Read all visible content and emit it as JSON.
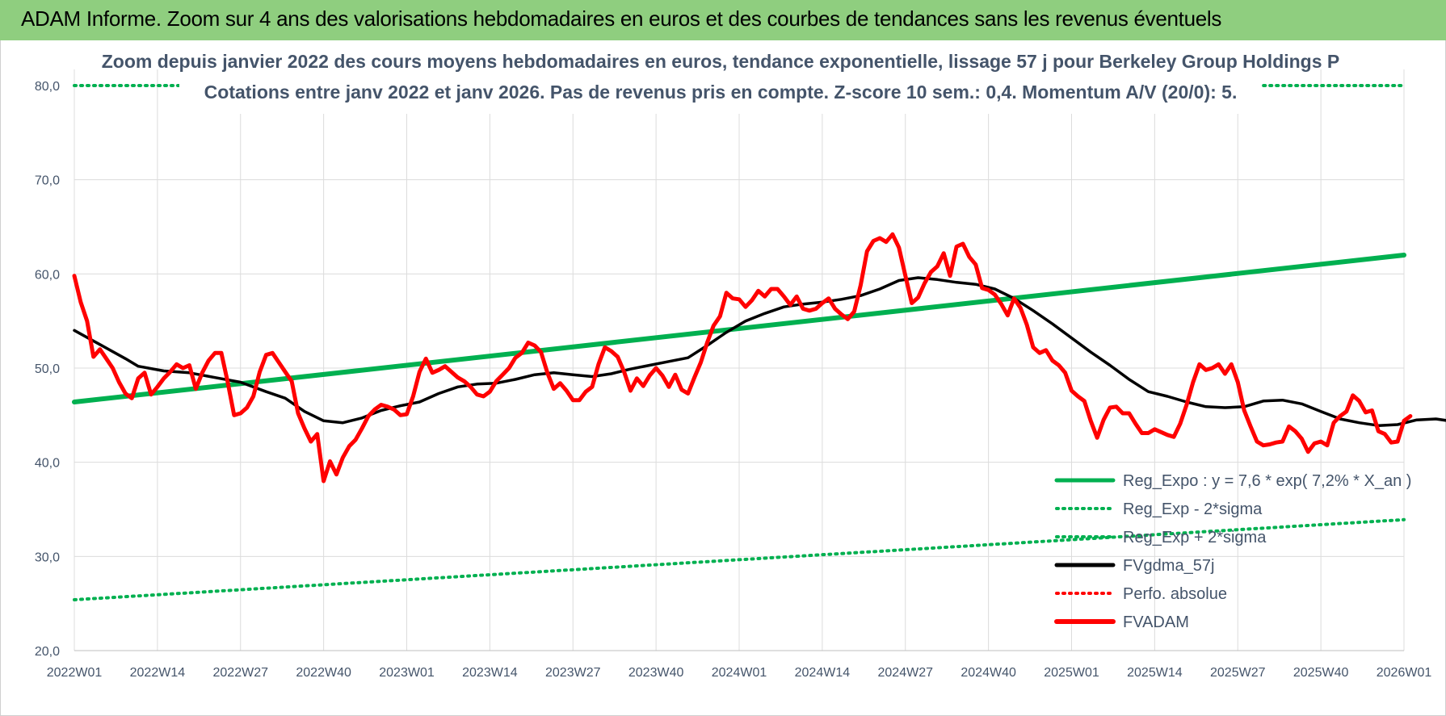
{
  "header": {
    "title": "ADAM Informe. Zoom sur 4 ans des valorisations hebdomadaires en euros et des courbes de tendances sans les revenus éventuels"
  },
  "chart_data": {
    "type": "line",
    "title": "Zoom depuis janvier 2022 des cours moyens hebdomadaires en euros, tendance exponentielle, lissage 57 j pour Berkeley Group Holdings P",
    "subtitle": "Cotations entre janv 2022 et janv 2026. Pas de revenus pris en compte. Z-score 10 sem.: 0,4. Momentum A/V (20/0): 5.",
    "xlabel": "",
    "ylabel": "",
    "ylim": [
      20,
      80
    ],
    "yticks": [
      "20,0",
      "30,0",
      "40,0",
      "50,0",
      "60,0",
      "70,0",
      "80,0"
    ],
    "x_tick_labels": [
      "2022W01",
      "2022W14",
      "2022W27",
      "2022W40",
      "2023W01",
      "2023W14",
      "2023W27",
      "2023W40",
      "2024W01",
      "2024W14",
      "2024W27",
      "2024W40",
      "2025W01",
      "2025W14",
      "2025W27",
      "2025W40",
      "2026W01"
    ],
    "grid": true,
    "legend_position": "bottom-right",
    "series": [
      {
        "name": "Reg_Expo : y = 7,6 * exp( 7,2% *  X_an )",
        "color": "#00b050",
        "style": "solid",
        "points": [
          [
            0,
            46.4
          ],
          [
            208,
            62.0
          ]
        ]
      },
      {
        "name": "Reg_Exp - 2*sigma",
        "color": "#00b050",
        "style": "dotted",
        "points": [
          [
            0,
            25.4
          ],
          [
            208,
            33.9
          ]
        ]
      },
      {
        "name": "Reg_Exp + 2*sigma",
        "color": "#00b050",
        "style": "dotted",
        "points": [
          [
            0,
            80.0
          ],
          [
            208,
            80.0
          ]
        ]
      },
      {
        "name": "FVgdma_57j",
        "color": "#000000",
        "style": "solid",
        "points": [
          [
            0,
            54.0
          ],
          [
            4,
            52.5
          ],
          [
            8,
            51.0
          ],
          [
            10,
            50.2
          ],
          [
            14,
            49.7
          ],
          [
            18,
            49.5
          ],
          [
            22,
            49.0
          ],
          [
            26,
            48.5
          ],
          [
            30,
            47.5
          ],
          [
            33,
            46.8
          ],
          [
            36,
            45.4
          ],
          [
            39,
            44.4
          ],
          [
            42,
            44.2
          ],
          [
            45,
            44.7
          ],
          [
            48,
            45.5
          ],
          [
            51,
            46.0
          ],
          [
            54,
            46.4
          ],
          [
            57,
            47.3
          ],
          [
            60,
            48.0
          ],
          [
            63,
            48.3
          ],
          [
            66,
            48.4
          ],
          [
            69,
            48.8
          ],
          [
            72,
            49.3
          ],
          [
            75,
            49.5
          ],
          [
            78,
            49.3
          ],
          [
            81,
            49.1
          ],
          [
            84,
            49.4
          ],
          [
            87,
            49.9
          ],
          [
            90,
            50.3
          ],
          [
            93,
            50.7
          ],
          [
            96,
            51.1
          ],
          [
            99,
            52.4
          ],
          [
            102,
            53.8
          ],
          [
            105,
            55.0
          ],
          [
            108,
            55.8
          ],
          [
            111,
            56.5
          ],
          [
            114,
            56.8
          ],
          [
            117,
            57.0
          ],
          [
            120,
            57.3
          ],
          [
            123,
            57.7
          ],
          [
            126,
            58.4
          ],
          [
            129,
            59.3
          ],
          [
            132,
            59.6
          ],
          [
            135,
            59.4
          ],
          [
            138,
            59.1
          ],
          [
            141,
            58.9
          ],
          [
            144,
            58.4
          ],
          [
            147,
            57.4
          ],
          [
            150,
            56.1
          ],
          [
            153,
            54.7
          ],
          [
            156,
            53.2
          ],
          [
            159,
            51.7
          ],
          [
            162,
            50.3
          ],
          [
            165,
            48.8
          ],
          [
            168,
            47.5
          ],
          [
            171,
            47.0
          ],
          [
            174,
            46.4
          ],
          [
            177,
            45.9
          ],
          [
            180,
            45.8
          ],
          [
            183,
            45.9
          ],
          [
            186,
            46.5
          ],
          [
            189,
            46.6
          ],
          [
            192,
            46.2
          ],
          [
            195,
            45.4
          ],
          [
            198,
            44.6
          ],
          [
            201,
            44.2
          ],
          [
            204,
            43.9
          ],
          [
            207,
            44.0
          ],
          [
            210,
            44.5
          ],
          [
            213,
            44.6
          ],
          [
            216,
            44.3
          ],
          [
            219,
            44.2
          ],
          [
            222,
            44.3
          ],
          [
            225,
            44.2
          ],
          [
            228,
            44.6
          ]
        ]
      },
      {
        "name": "Perfo. absolue",
        "color": "#ff0000",
        "style": "dotted",
        "points": []
      },
      {
        "name": "FVADAM",
        "color": "#ff0000",
        "style": "solid",
        "points": [
          [
            0,
            59.8
          ],
          [
            1,
            57.0
          ],
          [
            2,
            55.0
          ],
          [
            3,
            51.2
          ],
          [
            4,
            52.0
          ],
          [
            5,
            51.0
          ],
          [
            6,
            50.0
          ],
          [
            7,
            48.5
          ],
          [
            8,
            47.3
          ],
          [
            9,
            46.8
          ],
          [
            10,
            48.9
          ],
          [
            11,
            49.5
          ],
          [
            12,
            47.2
          ],
          [
            13,
            48.0
          ],
          [
            14,
            48.9
          ],
          [
            15,
            49.6
          ],
          [
            16,
            50.4
          ],
          [
            17,
            50.0
          ],
          [
            18,
            50.3
          ],
          [
            19,
            47.8
          ],
          [
            20,
            49.5
          ],
          [
            21,
            50.8
          ],
          [
            22,
            51.6
          ],
          [
            23,
            51.6
          ],
          [
            24,
            48.5
          ],
          [
            25,
            45.0
          ],
          [
            26,
            45.2
          ],
          [
            27,
            45.8
          ],
          [
            28,
            47.0
          ],
          [
            29,
            49.6
          ],
          [
            30,
            51.4
          ],
          [
            31,
            51.6
          ],
          [
            32,
            50.6
          ],
          [
            33,
            49.6
          ],
          [
            34,
            48.6
          ],
          [
            35,
            45.2
          ],
          [
            36,
            43.6
          ],
          [
            37,
            42.2
          ],
          [
            38,
            43.0
          ],
          [
            39,
            38.0
          ],
          [
            40,
            40.1
          ],
          [
            41,
            38.7
          ],
          [
            42,
            40.5
          ],
          [
            43,
            41.7
          ],
          [
            44,
            42.4
          ],
          [
            45,
            43.6
          ],
          [
            46,
            44.9
          ],
          [
            47,
            45.6
          ],
          [
            48,
            46.1
          ],
          [
            49,
            45.9
          ],
          [
            50,
            45.6
          ],
          [
            51,
            45.0
          ],
          [
            52,
            45.1
          ],
          [
            53,
            47.0
          ],
          [
            54,
            49.6
          ],
          [
            55,
            51.0
          ],
          [
            56,
            49.5
          ],
          [
            57,
            49.8
          ],
          [
            58,
            50.2
          ],
          [
            59,
            49.6
          ],
          [
            60,
            49.0
          ],
          [
            61,
            48.6
          ],
          [
            62,
            48.0
          ],
          [
            63,
            47.2
          ],
          [
            64,
            47.0
          ],
          [
            65,
            47.5
          ],
          [
            66,
            48.6
          ],
          [
            67,
            49.3
          ],
          [
            68,
            50.0
          ],
          [
            69,
            51.1
          ],
          [
            70,
            51.6
          ],
          [
            71,
            52.7
          ],
          [
            72,
            52.4
          ],
          [
            73,
            51.7
          ],
          [
            74,
            49.5
          ],
          [
            75,
            47.8
          ],
          [
            76,
            48.4
          ],
          [
            77,
            47.6
          ],
          [
            78,
            46.6
          ],
          [
            79,
            46.6
          ],
          [
            80,
            47.5
          ],
          [
            81,
            48.0
          ],
          [
            82,
            50.4
          ],
          [
            83,
            52.2
          ],
          [
            84,
            51.8
          ],
          [
            85,
            51.2
          ],
          [
            86,
            49.6
          ],
          [
            87,
            47.6
          ],
          [
            88,
            48.9
          ],
          [
            89,
            48.1
          ],
          [
            90,
            49.2
          ],
          [
            91,
            50.0
          ],
          [
            92,
            49.2
          ],
          [
            93,
            48.0
          ],
          [
            94,
            49.3
          ],
          [
            95,
            47.7
          ],
          [
            96,
            47.3
          ],
          [
            97,
            49.0
          ],
          [
            98,
            50.6
          ],
          [
            99,
            52.7
          ],
          [
            100,
            54.5
          ],
          [
            101,
            55.5
          ],
          [
            102,
            58.0
          ],
          [
            103,
            57.4
          ],
          [
            104,
            57.3
          ],
          [
            105,
            56.5
          ],
          [
            106,
            57.2
          ],
          [
            107,
            58.2
          ],
          [
            108,
            57.6
          ],
          [
            109,
            58.4
          ],
          [
            110,
            58.4
          ],
          [
            111,
            57.6
          ],
          [
            112,
            56.7
          ],
          [
            113,
            57.6
          ],
          [
            114,
            56.3
          ],
          [
            115,
            56.1
          ],
          [
            116,
            56.3
          ],
          [
            117,
            56.9
          ],
          [
            118,
            57.4
          ],
          [
            119,
            56.3
          ],
          [
            120,
            55.7
          ],
          [
            121,
            55.2
          ],
          [
            122,
            56.0
          ],
          [
            123,
            58.8
          ],
          [
            124,
            62.4
          ],
          [
            125,
            63.5
          ],
          [
            126,
            63.8
          ],
          [
            127,
            63.4
          ],
          [
            128,
            64.2
          ],
          [
            129,
            62.8
          ],
          [
            130,
            59.8
          ],
          [
            131,
            56.9
          ],
          [
            132,
            57.5
          ],
          [
            133,
            59.0
          ],
          [
            134,
            60.2
          ],
          [
            135,
            60.8
          ],
          [
            136,
            62.2
          ],
          [
            137,
            59.8
          ],
          [
            138,
            62.9
          ],
          [
            139,
            63.2
          ],
          [
            140,
            61.8
          ],
          [
            141,
            61.0
          ],
          [
            142,
            58.5
          ],
          [
            143,
            58.3
          ],
          [
            144,
            57.8
          ],
          [
            145,
            56.8
          ],
          [
            146,
            55.6
          ],
          [
            147,
            57.4
          ],
          [
            148,
            56.4
          ],
          [
            149,
            54.6
          ],
          [
            150,
            52.2
          ],
          [
            151,
            51.6
          ],
          [
            152,
            51.9
          ],
          [
            153,
            50.8
          ],
          [
            154,
            50.3
          ],
          [
            155,
            49.5
          ],
          [
            156,
            47.6
          ],
          [
            157,
            47.0
          ],
          [
            158,
            46.5
          ],
          [
            159,
            44.4
          ],
          [
            160,
            42.6
          ],
          [
            161,
            44.5
          ],
          [
            162,
            45.8
          ],
          [
            163,
            45.9
          ],
          [
            164,
            45.2
          ],
          [
            165,
            45.2
          ],
          [
            166,
            44.1
          ],
          [
            167,
            43.1
          ],
          [
            168,
            43.1
          ],
          [
            169,
            43.5
          ],
          [
            170,
            43.2
          ],
          [
            171,
            42.9
          ],
          [
            172,
            42.7
          ],
          [
            173,
            44.1
          ],
          [
            174,
            46.1
          ],
          [
            175,
            48.5
          ],
          [
            176,
            50.4
          ],
          [
            177,
            49.8
          ],
          [
            178,
            50.0
          ],
          [
            179,
            50.4
          ],
          [
            180,
            49.4
          ],
          [
            181,
            50.4
          ],
          [
            182,
            48.5
          ],
          [
            183,
            45.5
          ],
          [
            184,
            43.8
          ],
          [
            185,
            42.2
          ],
          [
            186,
            41.8
          ],
          [
            187,
            41.9
          ],
          [
            188,
            42.1
          ],
          [
            189,
            42.2
          ],
          [
            190,
            43.8
          ],
          [
            191,
            43.3
          ],
          [
            192,
            42.5
          ],
          [
            193,
            41.1
          ],
          [
            194,
            42.0
          ],
          [
            195,
            42.2
          ],
          [
            196,
            41.8
          ],
          [
            197,
            44.2
          ],
          [
            198,
            44.9
          ],
          [
            199,
            45.4
          ],
          [
            200,
            47.1
          ],
          [
            201,
            46.5
          ],
          [
            202,
            45.3
          ],
          [
            203,
            45.5
          ],
          [
            204,
            43.3
          ],
          [
            205,
            43.0
          ],
          [
            206,
            42.1
          ],
          [
            207,
            42.2
          ],
          [
            208,
            44.4
          ],
          [
            209,
            44.9
          ]
        ]
      }
    ]
  }
}
